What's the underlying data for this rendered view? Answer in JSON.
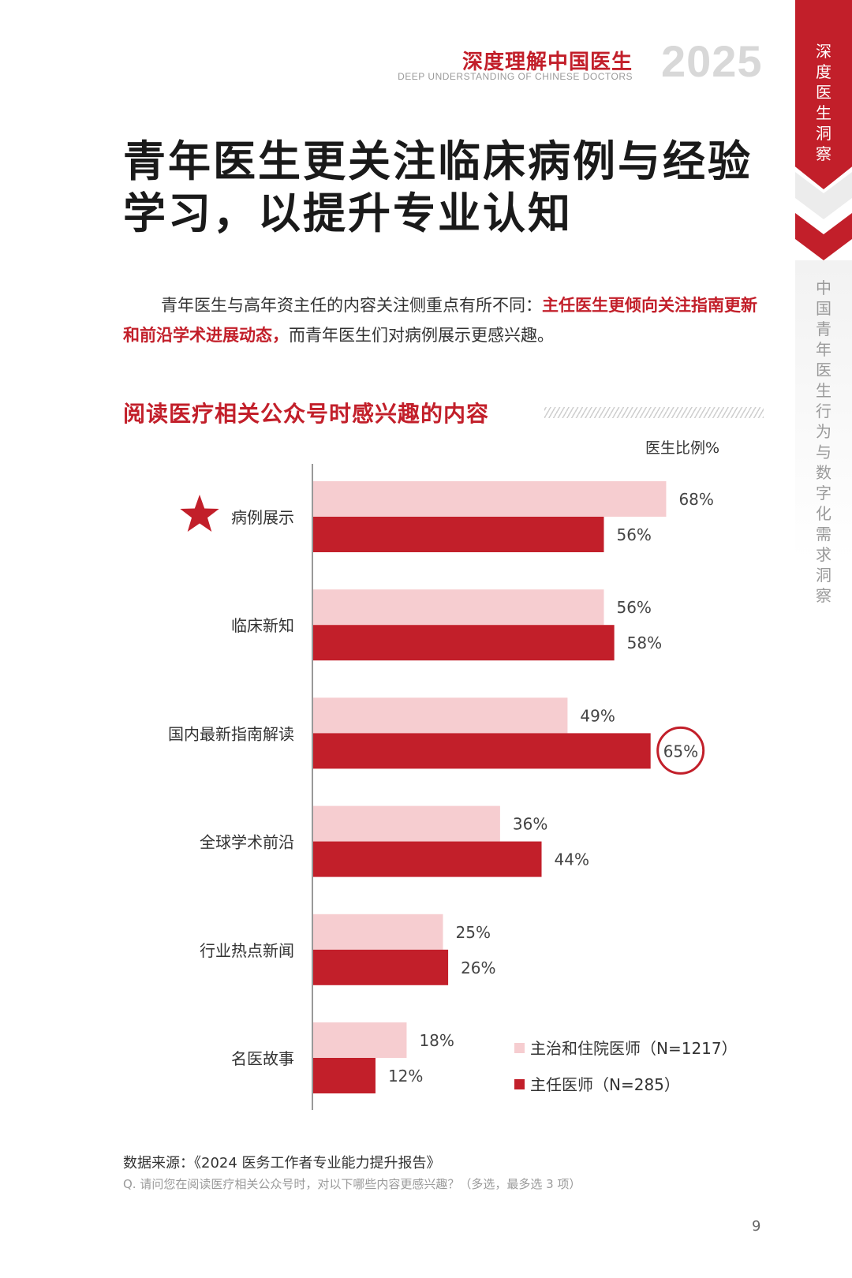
{
  "header": {
    "title_cn": "深度理解中国医生",
    "title_en": "DEEP UNDERSTANDING OF CHINESE DOCTORS",
    "year": "2025"
  },
  "side_tabs": {
    "active": "深度医生洞察",
    "inactive": "中国青年医生行为与数字化需求洞察"
  },
  "page_title": "青年医生更关注临床病例与经验学习，以提升专业认知",
  "intro": {
    "part1": "青年医生与高年资主任的内容关注侧重点有所不同：",
    "highlight": "主任医生更倾向关注指南更新和前沿学术进展动态，",
    "part2": "而青年医生们对病例展示更感兴趣。"
  },
  "section_title": "阅读医疗相关公众号时感兴趣的内容",
  "unit_label": "医生比例%",
  "chart_data": {
    "type": "bar",
    "orientation": "horizontal",
    "categories": [
      "病例展示",
      "临床新知",
      "国内最新指南解读",
      "全球学术前沿",
      "行业热点新闻",
      "名医故事"
    ],
    "series": [
      {
        "name": "主治和住院医师（N=1217）",
        "values": [
          68,
          56,
          49,
          36,
          25,
          18
        ],
        "color": "#f6cdd0"
      },
      {
        "name": "主任医师（N=285）",
        "values": [
          56,
          58,
          65,
          44,
          26,
          12
        ],
        "color": "#c21f2a"
      }
    ],
    "value_suffix": "%",
    "xlim": [
      0,
      100
    ],
    "star_category": "病例展示",
    "circled": {
      "category": "国内最新指南解读",
      "series": 1
    },
    "legend_position": "bottom-right",
    "grid": false
  },
  "source": "数据来源：《2024 医务工作者专业能力提升报告》",
  "footnote": "Q. 请问您在阅读医疗相关公众号时，对以下哪些内容更感兴趣？（多选，最多选 3 项）",
  "page_number": "9",
  "colors": {
    "accent_red": "#c21f2a",
    "light_pink": "#f6cdd0",
    "year_gray": "#d8d8d8"
  }
}
